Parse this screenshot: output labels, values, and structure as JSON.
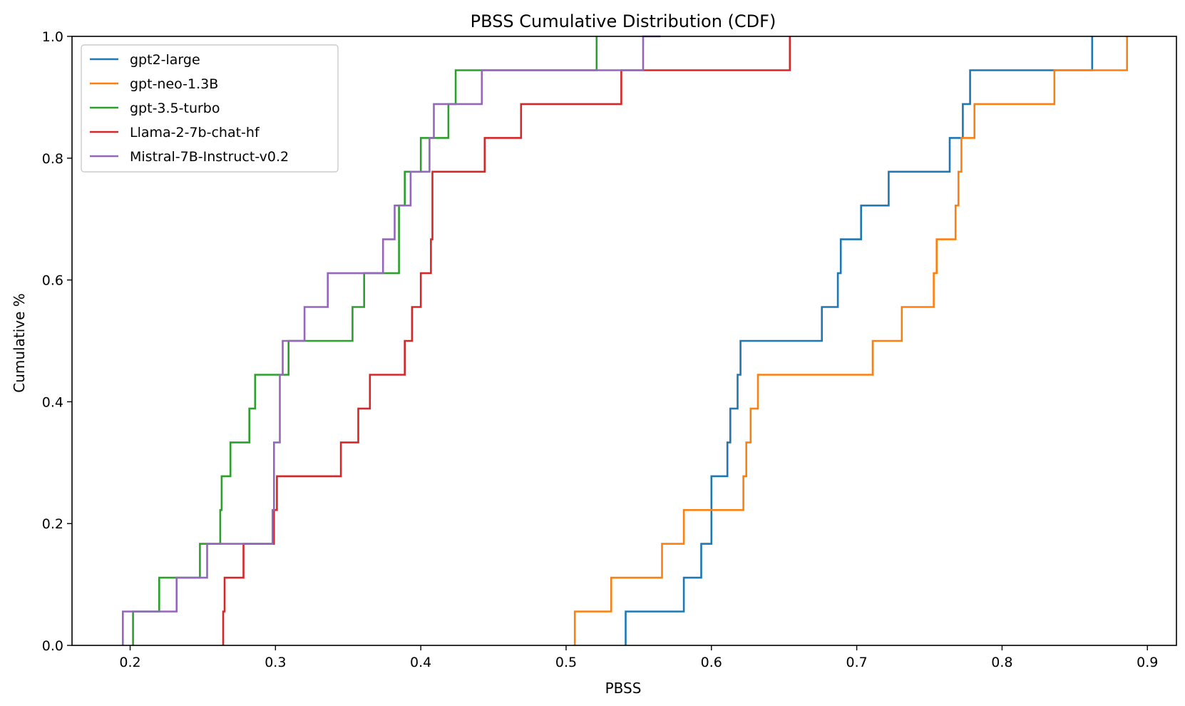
{
  "chart_data": {
    "type": "line",
    "step": true,
    "title": "PBSS Cumulative Distribution (CDF)",
    "xlabel": "PBSS",
    "ylabel": "Cumulative %",
    "xlim": [
      0.16,
      0.92
    ],
    "ylim": [
      0.0,
      1.0
    ],
    "xticks": [
      0.2,
      0.3,
      0.4,
      0.5,
      0.6,
      0.7,
      0.8,
      0.9
    ],
    "xtick_labels": [
      "0.2",
      "0.3",
      "0.4",
      "0.5",
      "0.6",
      "0.7",
      "0.8",
      "0.9"
    ],
    "yticks": [
      0.0,
      0.2,
      0.4,
      0.6,
      0.8,
      1.0
    ],
    "ytick_labels": [
      "0.0",
      "0.2",
      "0.4",
      "0.6",
      "0.8",
      "1.0"
    ],
    "grid": false,
    "legend_position": "top-left",
    "series": [
      {
        "name": "gpt2-large",
        "color": "#1f77b4",
        "x": [
          0.541,
          0.581,
          0.593,
          0.6,
          0.611,
          0.613,
          0.618,
          0.62,
          0.676,
          0.687,
          0.689,
          0.703,
          0.722,
          0.764,
          0.773,
          0.778,
          0.862
        ],
        "y": [
          0.0556,
          0.1111,
          0.1667,
          0.2778,
          0.3333,
          0.3889,
          0.4444,
          0.5,
          0.5556,
          0.6111,
          0.6667,
          0.7222,
          0.7778,
          0.8333,
          0.8889,
          0.9444,
          1.0
        ]
      },
      {
        "name": "gpt-neo-1.3B",
        "color": "#ff7f0e",
        "x": [
          0.506,
          0.531,
          0.566,
          0.581,
          0.622,
          0.624,
          0.627,
          0.632,
          0.711,
          0.731,
          0.753,
          0.755,
          0.768,
          0.77,
          0.772,
          0.781,
          0.836,
          0.886
        ],
        "y": [
          0.0556,
          0.1111,
          0.1667,
          0.2222,
          0.2778,
          0.3333,
          0.3889,
          0.4444,
          0.5,
          0.5556,
          0.6111,
          0.6667,
          0.7222,
          0.7778,
          0.8333,
          0.8889,
          0.9444,
          1.0
        ]
      },
      {
        "name": "gpt-3.5-turbo",
        "color": "#2ca02c",
        "x": [
          0.202,
          0.22,
          0.248,
          0.262,
          0.263,
          0.269,
          0.282,
          0.286,
          0.309,
          0.353,
          0.361,
          0.385,
          0.389,
          0.4,
          0.419,
          0.424,
          0.521
        ],
        "y": [
          0.0556,
          0.1111,
          0.1667,
          0.2222,
          0.2778,
          0.3333,
          0.3889,
          0.4444,
          0.5,
          0.5556,
          0.6111,
          0.7222,
          0.7778,
          0.8333,
          0.8889,
          0.9444,
          1.0
        ]
      },
      {
        "name": "Llama-2-7b-chat-hf",
        "color": "#d62728",
        "x": [
          0.264,
          0.265,
          0.278,
          0.299,
          0.301,
          0.345,
          0.357,
          0.365,
          0.389,
          0.394,
          0.4,
          0.407,
          0.408,
          0.444,
          0.469,
          0.538,
          0.654
        ],
        "y": [
          0.0556,
          0.1111,
          0.1667,
          0.2222,
          0.2778,
          0.3333,
          0.3889,
          0.4444,
          0.5,
          0.5556,
          0.6111,
          0.6667,
          0.7778,
          0.8333,
          0.8889,
          0.9444,
          1.0
        ]
      },
      {
        "name": "Mistral-7B-Instruct-v0.2",
        "color": "#9467bd",
        "x": [
          0.195,
          0.232,
          0.253,
          0.298,
          0.299,
          0.303,
          0.305,
          0.32,
          0.336,
          0.374,
          0.382,
          0.393,
          0.406,
          0.409,
          0.442,
          0.553,
          0.565
        ],
        "y": [
          0.0556,
          0.1111,
          0.1667,
          0.2222,
          0.3333,
          0.4444,
          0.5,
          0.5556,
          0.6111,
          0.6667,
          0.7222,
          0.7778,
          0.8333,
          0.8889,
          0.9444,
          1.0,
          1.0
        ]
      }
    ]
  }
}
